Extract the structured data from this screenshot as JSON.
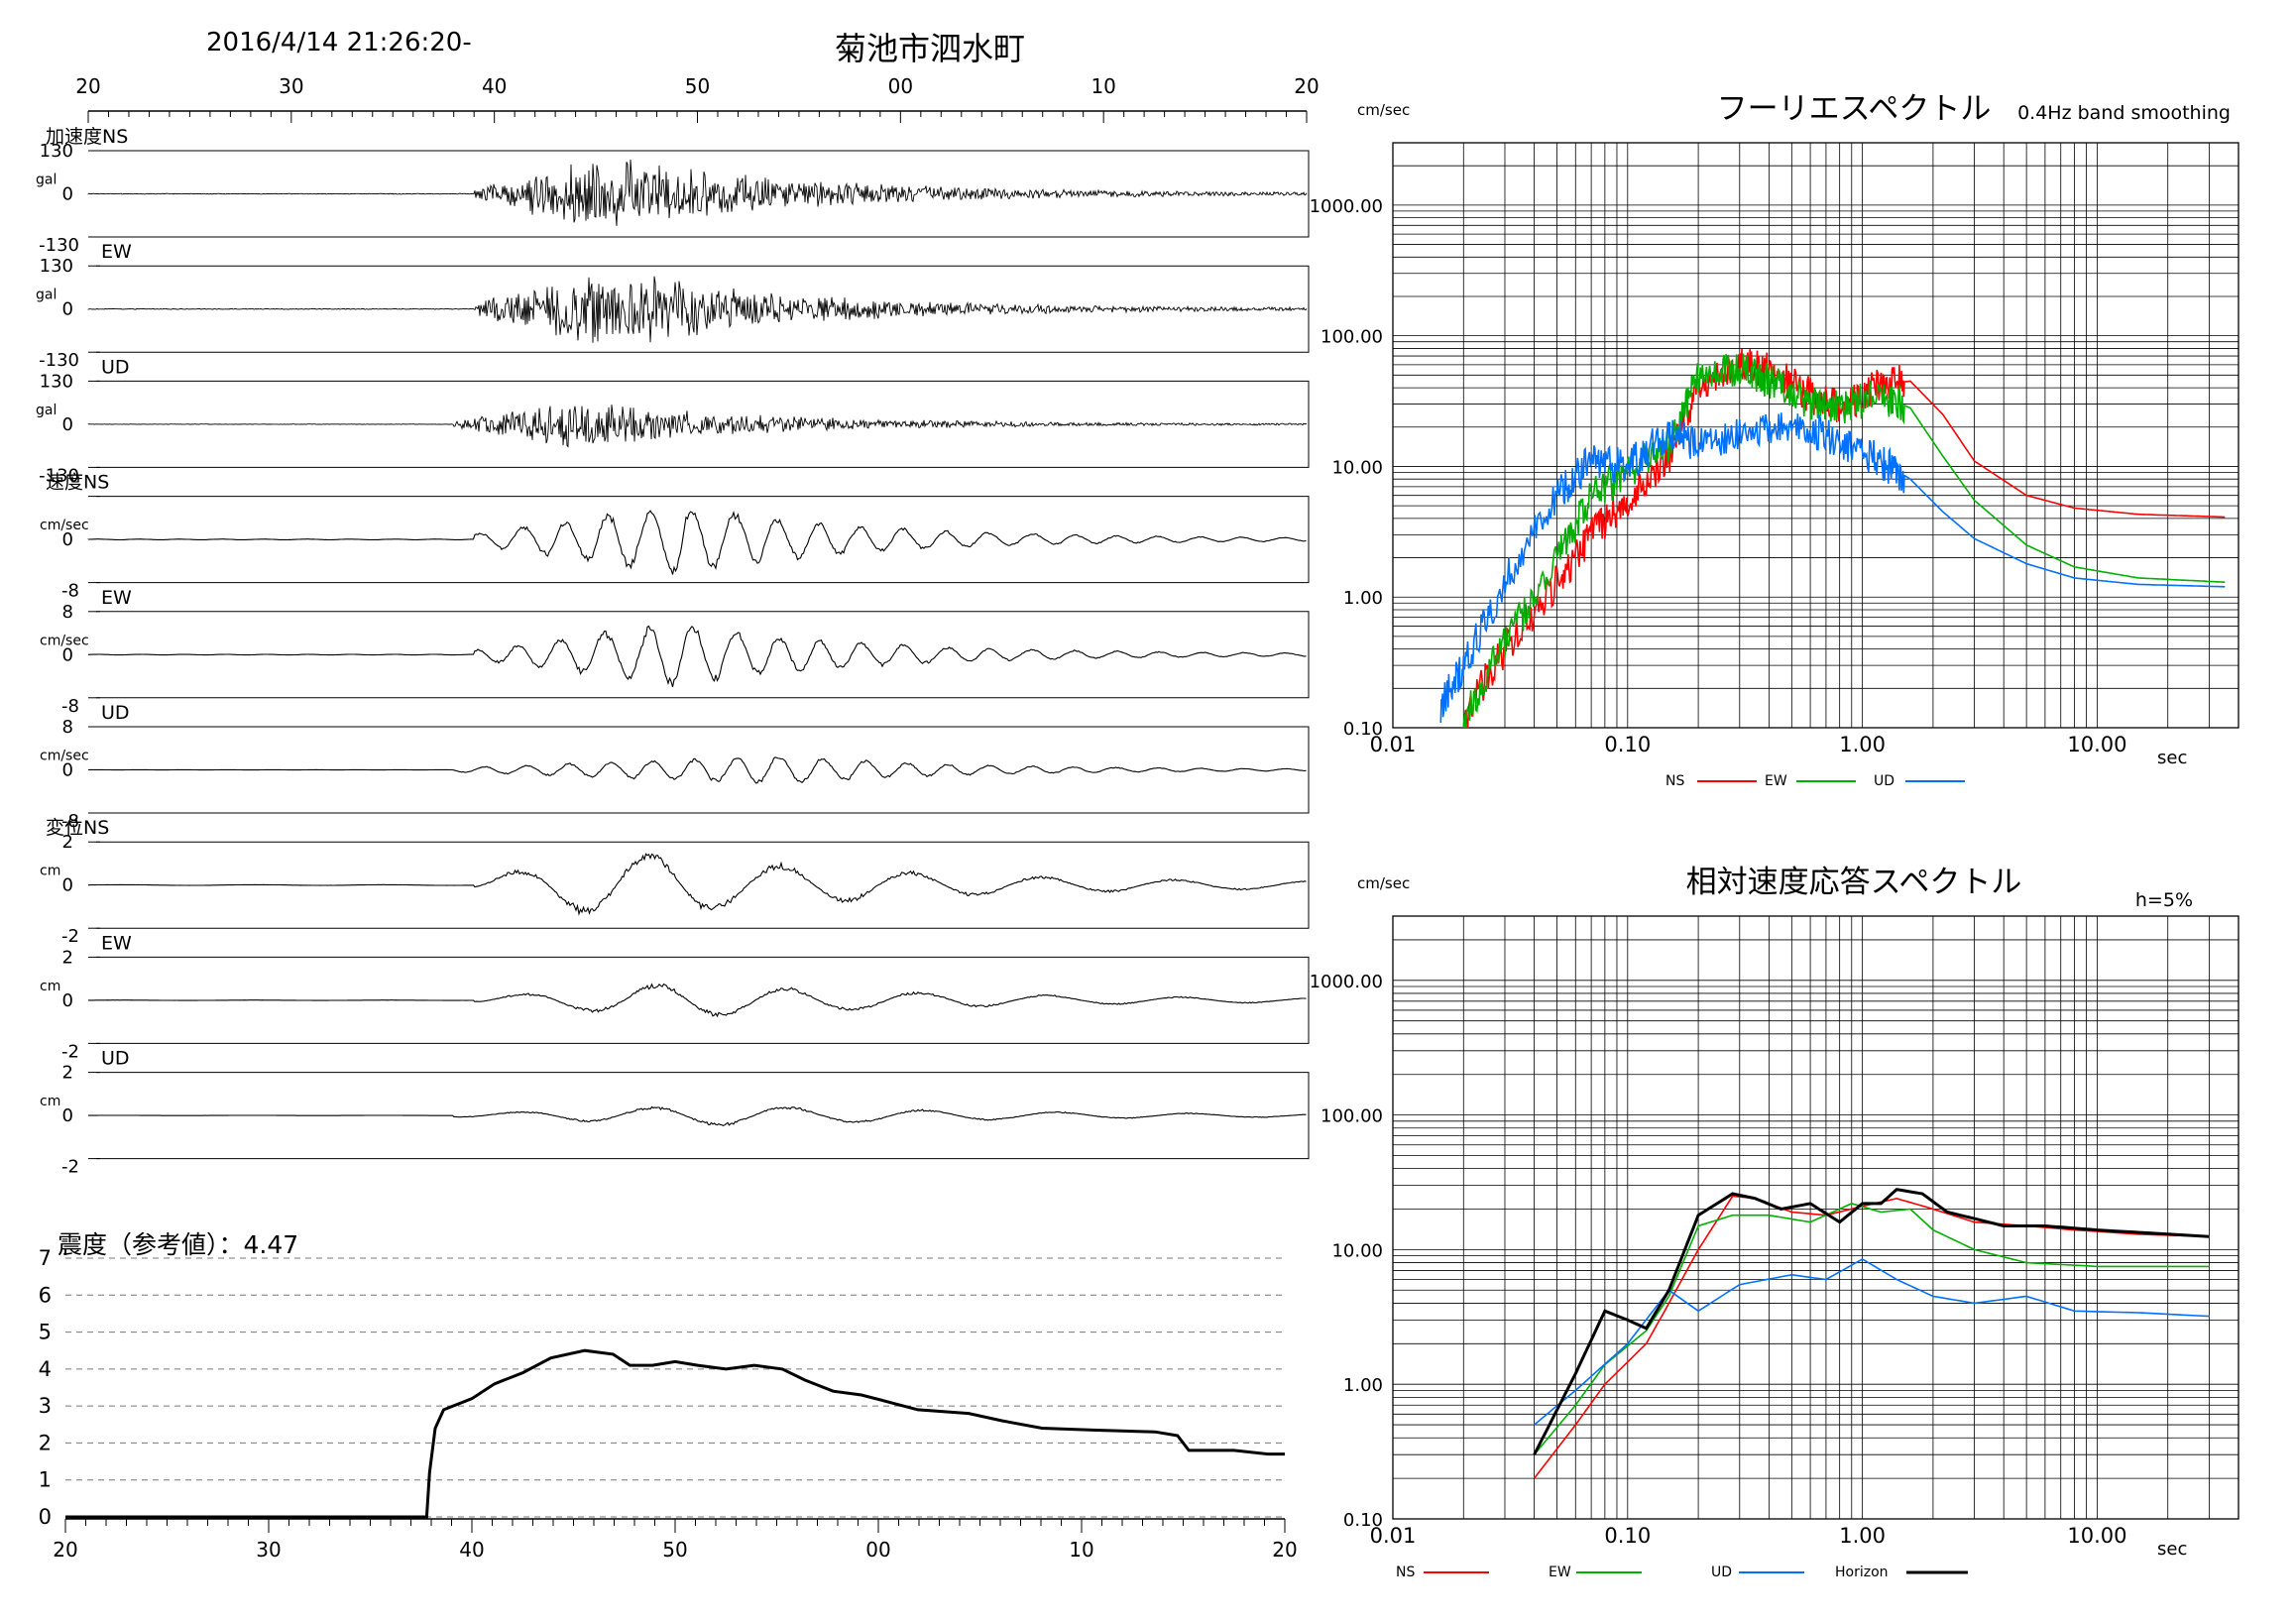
{
  "header": {
    "datetime": "2016/4/14 21:26:20-",
    "station": "菊池市泗水町"
  },
  "chart_data": [
    {
      "type": "line",
      "name": "waveforms",
      "time_ticks": [
        "20",
        "30",
        "40",
        "50",
        "00",
        "10",
        "20"
      ],
      "panels": [
        {
          "label": "加速度NS",
          "unit": "gal",
          "ymax_label": "130",
          "zero_label": "0",
          "ymin_label": "-130",
          "onset_tick": 7.8,
          "peak_tick": 9.3,
          "amp": 1.0
        },
        {
          "label": "EW",
          "unit": "gal",
          "ymax_label": "130",
          "zero_label": "0",
          "ymin_label": "-130",
          "onset_tick": 7.8,
          "peak_tick": 9.3,
          "amp": 1.0
        },
        {
          "label": "UD",
          "unit": "gal",
          "ymax_label": "130",
          "zero_label": "0",
          "ymin_label": "-130",
          "onset_tick": 7.6,
          "peak_tick": 9.0,
          "amp": 0.6
        },
        {
          "label": "速度NS",
          "unit": "cm/sec",
          "ymax_label": "",
          "zero_label": "0",
          "ymin_label": "-8",
          "onset_tick": 7.8,
          "peak_tick": 10.0,
          "amp": 1.0
        },
        {
          "label": "EW",
          "unit": "cm/sec",
          "ymax_label": "8",
          "zero_label": "0",
          "ymin_label": "-8",
          "onset_tick": 7.8,
          "peak_tick": 10.0,
          "amp": 0.9
        },
        {
          "label": "UD",
          "unit": "cm/sec",
          "ymax_label": "8",
          "zero_label": "0",
          "ymin_label": "-8",
          "onset_tick": 7.6,
          "peak_tick": 11.0,
          "amp": 0.4
        },
        {
          "label": "変位NS",
          "unit": "cm",
          "ymax_label": "2",
          "zero_label": "0",
          "ymin_label": "-2",
          "onset_tick": 7.8,
          "peak_tick": 9.4,
          "amp": 1.0
        },
        {
          "label": "EW",
          "unit": "cm",
          "ymax_label": "2",
          "zero_label": "0",
          "ymin_label": "-2",
          "onset_tick": 7.8,
          "peak_tick": 10.0,
          "amp": 0.5
        },
        {
          "label": "UD",
          "unit": "cm",
          "ymax_label": "2",
          "zero_label": "0",
          "ymin_label": "-2",
          "onset_tick": 7.6,
          "peak_tick": 10.5,
          "amp": 0.3
        }
      ]
    },
    {
      "type": "line",
      "title": "震度（参考値）：4.47",
      "yticks": [
        "0",
        "1",
        "2",
        "3",
        "4",
        "5",
        "6",
        "7"
      ],
      "ylim": [
        0,
        7
      ],
      "time_ticks": [
        "20",
        "30",
        "40",
        "50",
        "00",
        "10",
        "20"
      ],
      "points": [
        [
          0,
          0
        ],
        [
          6.4,
          0
        ],
        [
          6.45,
          1.2
        ],
        [
          6.55,
          2.4
        ],
        [
          6.7,
          2.9
        ],
        [
          7.2,
          3.2
        ],
        [
          7.6,
          3.6
        ],
        [
          8.1,
          3.9
        ],
        [
          8.6,
          4.3
        ],
        [
          9.2,
          4.5
        ],
        [
          9.7,
          4.4
        ],
        [
          10.0,
          4.1
        ],
        [
          10.4,
          4.1
        ],
        [
          10.8,
          4.2
        ],
        [
          11.2,
          4.1
        ],
        [
          11.7,
          4.0
        ],
        [
          12.2,
          4.1
        ],
        [
          12.7,
          4.0
        ],
        [
          13.1,
          3.7
        ],
        [
          13.6,
          3.4
        ],
        [
          14.1,
          3.3
        ],
        [
          14.6,
          3.1
        ],
        [
          15.1,
          2.9
        ],
        [
          16.0,
          2.8
        ],
        [
          16.6,
          2.6
        ],
        [
          17.3,
          2.4
        ],
        [
          18.2,
          2.35
        ],
        [
          19.3,
          2.3
        ],
        [
          19.7,
          2.2
        ],
        [
          19.9,
          1.8
        ],
        [
          20.7,
          1.8
        ],
        [
          21.3,
          1.7
        ],
        [
          21.6,
          1.7
        ]
      ]
    },
    {
      "type": "line",
      "title": "フーリエスペクトル",
      "note": "0.4Hz band smoothing",
      "ylabel": "cm/sec",
      "xlabel": "sec",
      "x_scale": "log",
      "y_scale": "log",
      "xlim": [
        0.01,
        40
      ],
      "ylim": [
        0.1,
        3000
      ],
      "x_tick_labels": [
        "0.01",
        "0.10",
        "1.00",
        "10.00"
      ],
      "y_tick_labels": [
        "0.10",
        "1.00",
        "10.00",
        "100.00",
        "1000.00"
      ],
      "series": [
        {
          "name": "NS",
          "color": "#ff0000",
          "points": [
            [
              0.02,
              0.12
            ],
            [
              0.03,
              0.4
            ],
            [
              0.05,
              1.3
            ],
            [
              0.07,
              3.0
            ],
            [
              0.1,
              5.5
            ],
            [
              0.15,
              12
            ],
            [
              0.2,
              40
            ],
            [
              0.3,
              60
            ],
            [
              0.4,
              55
            ],
            [
              0.6,
              35
            ],
            [
              0.8,
              28
            ],
            [
              1.2,
              42
            ],
            [
              1.6,
              45
            ],
            [
              2.2,
              25
            ],
            [
              3.0,
              11
            ],
            [
              5.0,
              6
            ],
            [
              8.0,
              4.8
            ],
            [
              15,
              4.3
            ],
            [
              35,
              4.1
            ]
          ]
        },
        {
          "name": "EW",
          "color": "#00b000",
          "points": [
            [
              0.02,
              0.12
            ],
            [
              0.03,
              0.45
            ],
            [
              0.05,
              2.0
            ],
            [
              0.07,
              6.0
            ],
            [
              0.1,
              9.0
            ],
            [
              0.15,
              15
            ],
            [
              0.2,
              50
            ],
            [
              0.3,
              55
            ],
            [
              0.4,
              45
            ],
            [
              0.6,
              30
            ],
            [
              0.8,
              28
            ],
            [
              1.2,
              35
            ],
            [
              1.6,
              28
            ],
            [
              2.2,
              12
            ],
            [
              3.0,
              5.5
            ],
            [
              5.0,
              2.5
            ],
            [
              8.0,
              1.7
            ],
            [
              15,
              1.4
            ],
            [
              35,
              1.3
            ]
          ]
        },
        {
          "name": "UD",
          "color": "#0070ff",
          "points": [
            [
              0.016,
              0.15
            ],
            [
              0.02,
              0.3
            ],
            [
              0.03,
              1.3
            ],
            [
              0.05,
              6.0
            ],
            [
              0.07,
              11
            ],
            [
              0.1,
              10
            ],
            [
              0.15,
              18
            ],
            [
              0.2,
              15
            ],
            [
              0.3,
              17
            ],
            [
              0.5,
              20
            ],
            [
              0.8,
              16
            ],
            [
              1.2,
              11
            ],
            [
              1.6,
              8
            ],
            [
              2.2,
              4.5
            ],
            [
              3.0,
              2.8
            ],
            [
              5.0,
              1.8
            ],
            [
              8.0,
              1.4
            ],
            [
              15,
              1.25
            ],
            [
              35,
              1.2
            ]
          ]
        }
      ]
    },
    {
      "type": "line",
      "title": "相対速度応答スペクトル",
      "note": "h=5%",
      "ylabel": "cm/sec",
      "xlabel": "sec",
      "x_scale": "log",
      "y_scale": "log",
      "xlim": [
        0.01,
        40
      ],
      "ylim": [
        0.1,
        3000
      ],
      "x_tick_labels": [
        "0.01",
        "0.10",
        "1.00",
        "10.00"
      ],
      "y_tick_labels": [
        "0.10",
        "1.00",
        "10.00",
        "100.00",
        "1000.00"
      ],
      "series": [
        {
          "name": "NS",
          "color": "#ff0000",
          "points": [
            [
              0.04,
              0.2
            ],
            [
              0.06,
              0.5
            ],
            [
              0.08,
              1.0
            ],
            [
              0.12,
              2.0
            ],
            [
              0.15,
              4.0
            ],
            [
              0.2,
              10
            ],
            [
              0.28,
              25
            ],
            [
              0.35,
              24
            ],
            [
              0.5,
              19
            ],
            [
              0.7,
              18
            ],
            [
              1.0,
              21
            ],
            [
              1.4,
              24
            ],
            [
              2.0,
              20
            ],
            [
              3.0,
              16
            ],
            [
              5.0,
              15
            ],
            [
              8.0,
              14
            ],
            [
              15,
              13
            ],
            [
              30,
              12.5
            ]
          ]
        },
        {
          "name": "EW",
          "color": "#00b000",
          "points": [
            [
              0.04,
              0.3
            ],
            [
              0.06,
              0.7
            ],
            [
              0.08,
              1.4
            ],
            [
              0.12,
              2.5
            ],
            [
              0.15,
              4.5
            ],
            [
              0.2,
              15
            ],
            [
              0.28,
              18
            ],
            [
              0.4,
              18
            ],
            [
              0.6,
              16
            ],
            [
              0.9,
              22
            ],
            [
              1.2,
              19
            ],
            [
              1.6,
              20
            ],
            [
              2.0,
              14
            ],
            [
              3.0,
              10
            ],
            [
              5.0,
              8
            ],
            [
              10,
              7.5
            ],
            [
              30,
              7.5
            ]
          ]
        },
        {
          "name": "UD",
          "color": "#0070ff",
          "points": [
            [
              0.04,
              0.5
            ],
            [
              0.06,
              0.9
            ],
            [
              0.1,
              2.0
            ],
            [
              0.15,
              5.0
            ],
            [
              0.2,
              3.5
            ],
            [
              0.3,
              5.5
            ],
            [
              0.5,
              6.5
            ],
            [
              0.7,
              6.0
            ],
            [
              1.0,
              8.5
            ],
            [
              1.4,
              6.0
            ],
            [
              2.0,
              4.5
            ],
            [
              3.0,
              4.0
            ],
            [
              5.0,
              4.5
            ],
            [
              8.0,
              3.5
            ],
            [
              15,
              3.4
            ],
            [
              30,
              3.2
            ]
          ]
        },
        {
          "name": "Horizon",
          "color": "#000000",
          "points": [
            [
              0.04,
              0.3
            ],
            [
              0.06,
              1.2
            ],
            [
              0.08,
              3.5
            ],
            [
              0.1,
              3.0
            ],
            [
              0.12,
              2.6
            ],
            [
              0.15,
              5.0
            ],
            [
              0.2,
              18
            ],
            [
              0.28,
              26
            ],
            [
              0.35,
              24
            ],
            [
              0.45,
              20
            ],
            [
              0.6,
              22
            ],
            [
              0.8,
              16
            ],
            [
              1.0,
              22
            ],
            [
              1.2,
              22
            ],
            [
              1.4,
              28
            ],
            [
              1.8,
              26
            ],
            [
              2.3,
              19
            ],
            [
              3.0,
              17
            ],
            [
              4.0,
              15
            ],
            [
              6.0,
              15
            ],
            [
              10,
              14
            ],
            [
              30,
              12.5
            ]
          ]
        }
      ]
    }
  ]
}
